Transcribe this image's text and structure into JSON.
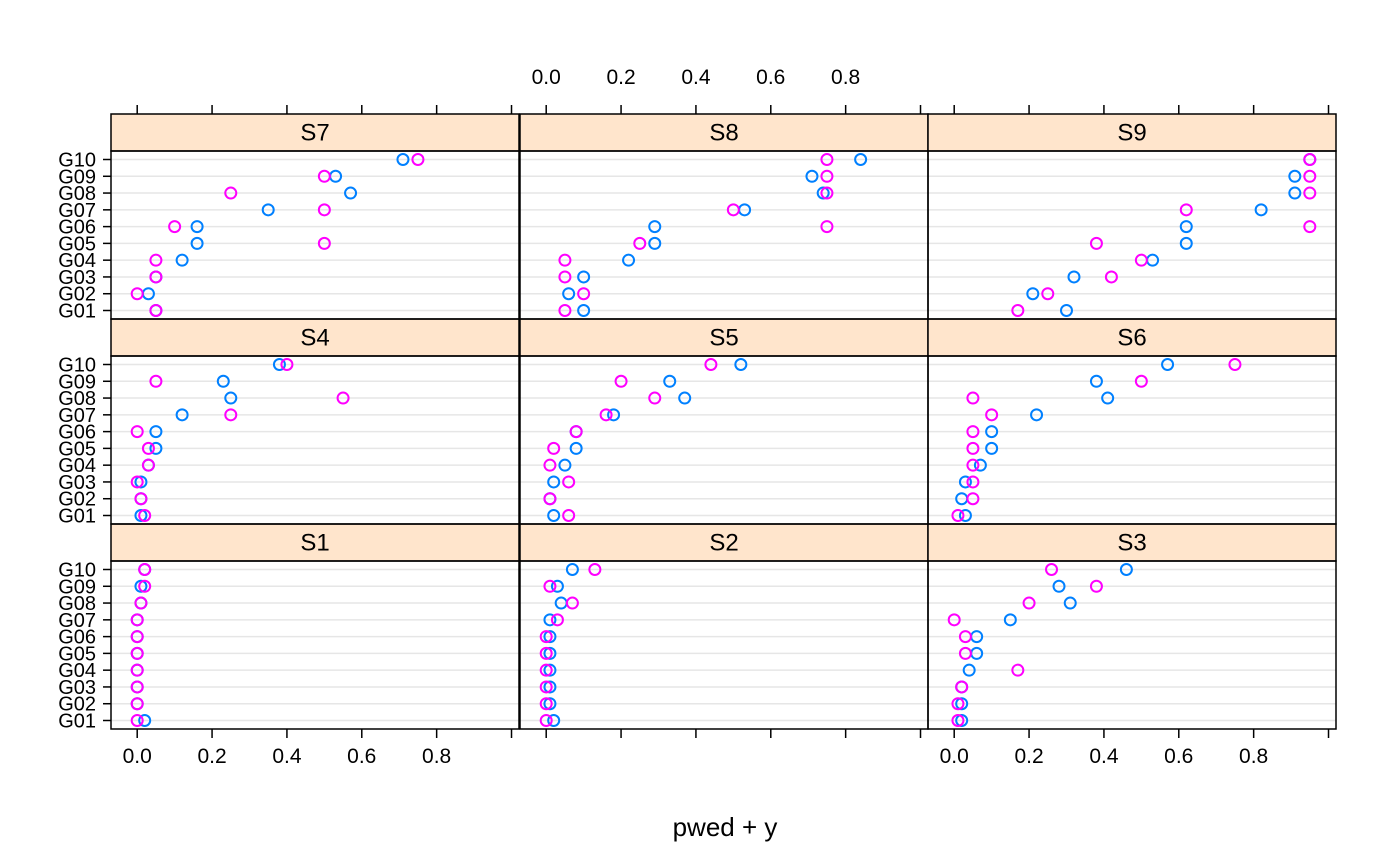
{
  "chart_data": {
    "type": "dotplot-trellis",
    "xlabel": "pwed + y",
    "xlim": [
      -0.07,
      1.02
    ],
    "xticks": [
      0,
      0.2,
      0.4,
      0.6,
      0.8
    ],
    "xtick_labels": [
      "0.0",
      "0.2",
      "0.4",
      "0.6",
      "0.8"
    ],
    "categories": [
      "G01",
      "G02",
      "G03",
      "G04",
      "G05",
      "G06",
      "G07",
      "G08",
      "G09",
      "G10"
    ],
    "series": [
      {
        "name": "pwed",
        "color": "#0080ff"
      },
      {
        "name": "y",
        "color": "#ff00ff"
      }
    ],
    "grid": true,
    "layout": {
      "cols": 3,
      "rows": 3
    },
    "panels": [
      {
        "label": "S1",
        "pwed": [
          0.02,
          0.0,
          0.0,
          0.0,
          0.0,
          0.0,
          0.0,
          0.01,
          0.01,
          0.02
        ],
        "y": [
          0.0,
          0.0,
          0.0,
          0.0,
          0.0,
          0.0,
          0.0,
          0.01,
          0.02,
          0.02
        ]
      },
      {
        "label": "S2",
        "pwed": [
          0.02,
          0.01,
          0.01,
          0.01,
          0.01,
          0.01,
          0.01,
          0.04,
          0.03,
          0.07
        ],
        "y": [
          0.0,
          0.0,
          0.0,
          0.0,
          0.0,
          0.0,
          0.03,
          0.07,
          0.01,
          0.13
        ]
      },
      {
        "label": "S3",
        "pwed": [
          0.02,
          0.02,
          0.02,
          0.04,
          0.06,
          0.06,
          0.15,
          0.31,
          0.28,
          0.46
        ],
        "y": [
          0.01,
          0.01,
          0.02,
          0.17,
          0.03,
          0.03,
          0.0,
          0.2,
          0.38,
          0.26
        ]
      },
      {
        "label": "S4",
        "pwed": [
          0.01,
          0.01,
          0.01,
          0.03,
          0.05,
          0.05,
          0.12,
          0.25,
          0.23,
          0.38
        ],
        "y": [
          0.02,
          0.01,
          0.0,
          0.03,
          0.03,
          0.0,
          0.25,
          0.55,
          0.05,
          0.4
        ]
      },
      {
        "label": "S5",
        "pwed": [
          0.02,
          0.01,
          0.02,
          0.05,
          0.08,
          0.08,
          0.18,
          0.37,
          0.33,
          0.52
        ],
        "y": [
          0.06,
          0.01,
          0.06,
          0.01,
          0.02,
          0.08,
          0.16,
          0.29,
          0.2,
          0.44
        ]
      },
      {
        "label": "S6",
        "pwed": [
          0.03,
          0.02,
          0.03,
          0.07,
          0.1,
          0.1,
          0.22,
          0.41,
          0.38,
          0.57
        ],
        "y": [
          0.01,
          0.05,
          0.05,
          0.05,
          0.05,
          0.05,
          0.1,
          0.05,
          0.5,
          0.75
        ]
      },
      {
        "label": "S7",
        "pwed": [
          0.05,
          0.03,
          0.05,
          0.12,
          0.16,
          0.16,
          0.35,
          0.57,
          0.53,
          0.71
        ],
        "y": [
          0.05,
          0.0,
          0.05,
          0.05,
          0.5,
          0.1,
          0.5,
          0.25,
          0.5,
          0.75
        ]
      },
      {
        "label": "S8",
        "pwed": [
          0.1,
          0.06,
          0.1,
          0.22,
          0.29,
          0.29,
          0.53,
          0.74,
          0.71,
          0.84
        ],
        "y": [
          0.05,
          0.1,
          0.05,
          0.05,
          0.25,
          0.75,
          0.5,
          0.75,
          0.75,
          0.75
        ]
      },
      {
        "label": "S9",
        "pwed": [
          0.3,
          0.21,
          0.32,
          0.53,
          0.62,
          0.62,
          0.82,
          0.91,
          0.91,
          0.95
        ],
        "y": [
          0.17,
          0.25,
          0.42,
          0.5,
          0.38,
          0.95,
          0.62,
          0.95,
          0.95,
          0.95
        ]
      }
    ]
  }
}
